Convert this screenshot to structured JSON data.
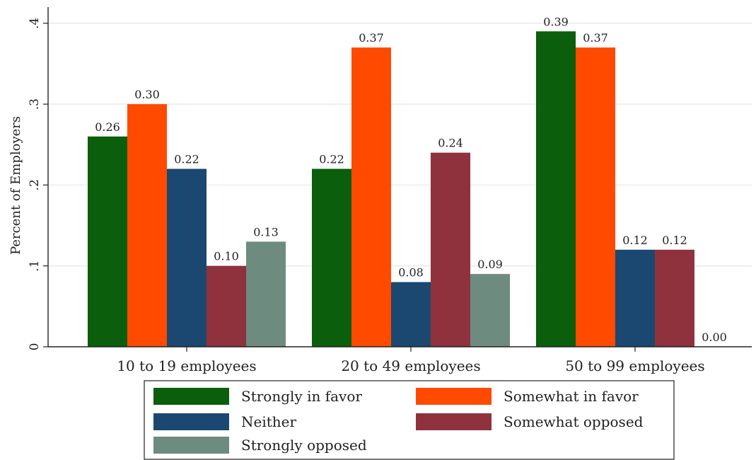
{
  "chart_data": {
    "type": "bar",
    "categories": [
      "10 to 19 employees",
      "20 to 49 employees",
      "50 to 99 employees"
    ],
    "series": [
      {
        "name": "Strongly in favor",
        "color": "#0b5e0b",
        "values": [
          0.26,
          0.22,
          0.39
        ],
        "labels": [
          "0.26",
          "0.22",
          "0.39"
        ]
      },
      {
        "name": "Somewhat in favor",
        "color": "#ff4a00",
        "values": [
          0.3,
          0.37,
          0.37
        ],
        "labels": [
          "0.30",
          "0.37",
          "0.37"
        ]
      },
      {
        "name": "Neither",
        "color": "#1a4870",
        "values": [
          0.22,
          0.08,
          0.12
        ],
        "labels": [
          "0.22",
          "0.08",
          "0.12"
        ]
      },
      {
        "name": "Somewhat opposed",
        "color": "#8f323d",
        "values": [
          0.1,
          0.24,
          0.12
        ],
        "labels": [
          "0.10",
          "0.24",
          "0.12"
        ]
      },
      {
        "name": "Strongly opposed",
        "color": "#6d8b7f",
        "values": [
          0.13,
          0.09,
          0.0
        ],
        "labels": [
          "0.13",
          "0.09",
          "0.00"
        ]
      }
    ],
    "title": "",
    "xlabel": "",
    "ylabel": "Percent of Employers",
    "ylim": [
      0,
      0.42
    ],
    "yticks": [
      0,
      0.1,
      0.2,
      0.3,
      0.4
    ],
    "ytick_labels": [
      "0",
      ".1",
      ".2",
      ".3",
      ".4"
    ],
    "grid": true,
    "legend_position": "bottom"
  }
}
